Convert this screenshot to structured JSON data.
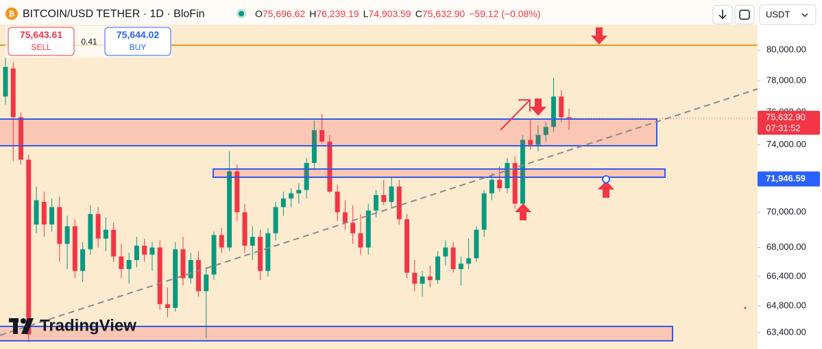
{
  "header": {
    "symbol": "BITCOIN/USD TETHER · 1D · BloFin",
    "o_label": "O",
    "o": "75,696.62",
    "h_label": "H",
    "h": "76,239.19",
    "l_label": "L",
    "l": "74,903.59",
    "c_label": "C",
    "c": "75,632.90",
    "change": "−59.12 (−0.08%)",
    "currency": "USDT",
    "sell_price": "75,643.61",
    "sell_label": "SELL",
    "spread": "0.41",
    "buy_price": "75,644.02",
    "buy_label": "BUY",
    "logo": "TradingView"
  },
  "chart_data": {
    "type": "candlestick",
    "log_scale": true,
    "up_color": "#089981",
    "down_color": "#f23645",
    "ylim": [
      62900,
      80600
    ],
    "yticks": [
      {
        "value": 80000,
        "label": "80,000.00"
      },
      {
        "value": 78000,
        "label": "78,000.00"
      },
      {
        "value": 76000,
        "label": "76,000.00"
      },
      {
        "value": 74000,
        "label": "74,000.00"
      },
      {
        "value": 70000,
        "label": "70,000.00"
      },
      {
        "value": 68000,
        "label": "68,000.00"
      },
      {
        "value": 66400,
        "label": "66,400.00"
      },
      {
        "value": 64800,
        "label": "64,800.00"
      },
      {
        "value": 63400,
        "label": "63,400.00"
      }
    ],
    "last_price": {
      "value": 75632.9,
      "label": "75,632.90",
      "countdown": "07:31:52"
    },
    "marker_price": {
      "value": 71946.59,
      "label": "71,946.59"
    },
    "open": [
      77000,
      78800,
      75700,
      73100,
      69300,
      70600,
      69300,
      70300,
      68200,
      69200,
      66700,
      67900,
      69900,
      68500,
      69000,
      67500,
      66800,
      67300,
      68100,
      67600,
      68000,
      64900,
      64700,
      67900,
      66300,
      67300,
      65600,
      66500,
      68700,
      68000,
      72400,
      70000,
      68100,
      68600,
      66700,
      68800,
      70300,
      70800,
      71100,
      71300,
      72900,
      74900,
      74200,
      71200,
      70000,
      69400,
      68800,
      68000,
      70100,
      71000,
      70600,
      71500,
      69600,
      66600,
      66000,
      66400,
      66200,
      67500,
      68000,
      66800,
      67100,
      67400,
      69000,
      71100,
      71900,
      71400,
      72900,
      70500,
      74300,
      74000,
      74600,
      75100,
      77000,
      75696.62
    ],
    "high": [
      79500,
      79200,
      76000,
      73400,
      71500,
      71200,
      70800,
      70900,
      69800,
      69600,
      68300,
      70400,
      70300,
      69700,
      69400,
      68200,
      67700,
      68600,
      68500,
      68300,
      68400,
      65800,
      68300,
      68600,
      67700,
      67800,
      66900,
      68900,
      69100,
      73600,
      72800,
      70500,
      69200,
      69000,
      69100,
      70600,
      71200,
      71400,
      71700,
      73200,
      75500,
      75900,
      74600,
      71600,
      70700,
      70400,
      69900,
      70500,
      71300,
      71900,
      72000,
      71900,
      69900,
      67300,
      66700,
      67000,
      67800,
      68400,
      68300,
      67500,
      68500,
      69200,
      71300,
      72300,
      72700,
      73200,
      73300,
      74600,
      75600,
      75200,
      75400,
      78200,
      77400,
      76239.19
    ],
    "low": [
      76500,
      73000,
      72800,
      62900,
      68800,
      68600,
      68900,
      67200,
      66800,
      66300,
      66100,
      67600,
      68000,
      67800,
      67200,
      66300,
      66000,
      66900,
      67200,
      66700,
      64600,
      64200,
      64500,
      65900,
      66000,
      65300,
      63100,
      66200,
      67700,
      67800,
      69500,
      67700,
      67300,
      66200,
      66400,
      68400,
      69800,
      70300,
      70500,
      70800,
      72500,
      74100,
      71100,
      69500,
      69000,
      68200,
      67600,
      67600,
      69700,
      70400,
      70200,
      69300,
      66300,
      65600,
      65300,
      65800,
      66000,
      67000,
      66600,
      65900,
      66800,
      67200,
      68600,
      70700,
      71200,
      71100,
      70200,
      70300,
      73700,
      73600,
      74200,
      74800,
      75400,
      74903.59
    ],
    "close": [
      78900,
      75700,
      73100,
      63300,
      70700,
      69300,
      70300,
      68200,
      69200,
      66700,
      67900,
      69900,
      68500,
      69000,
      67500,
      66800,
      67300,
      68100,
      67600,
      68000,
      64900,
      64700,
      67900,
      66300,
      67300,
      65600,
      66500,
      68700,
      68000,
      72400,
      70000,
      68100,
      68600,
      66700,
      68800,
      70300,
      70800,
      71100,
      71300,
      72900,
      74900,
      74200,
      71200,
      70000,
      69400,
      68800,
      68000,
      70100,
      71000,
      70600,
      71500,
      69600,
      66600,
      66000,
      66400,
      66200,
      67500,
      68000,
      66800,
      67100,
      67400,
      69000,
      71100,
      71900,
      71400,
      72900,
      70500,
      74300,
      74000,
      74600,
      75100,
      77000,
      75700,
      75632.9
    ]
  }
}
